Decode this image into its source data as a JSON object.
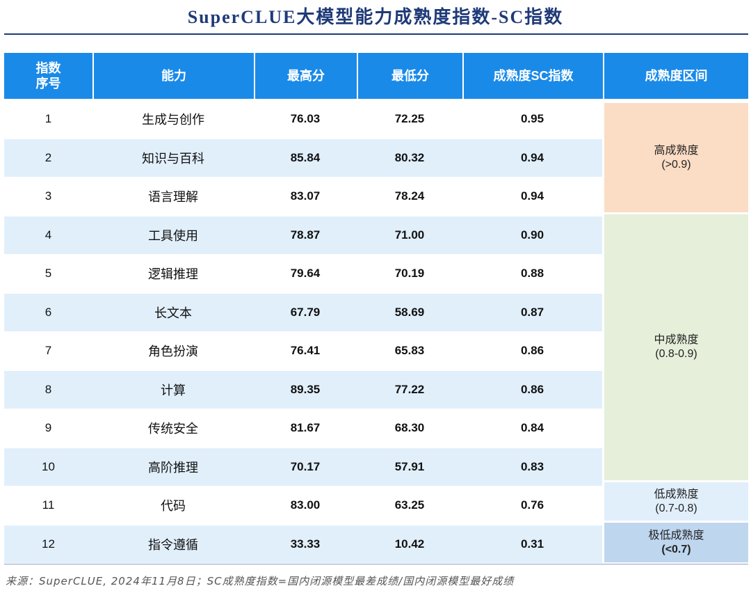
{
  "title": "SuperCLUE大模型能力成熟度指数-SC指数",
  "table": {
    "headers": {
      "index_line1": "指数",
      "index_line2": "序号",
      "ability": "能力",
      "max": "最高分",
      "min": "最低分",
      "sc": "成熟度SC指数",
      "range": "成熟度区间"
    },
    "rows": [
      {
        "index": "1",
        "ability": "生成与创作",
        "max": "76.03",
        "min": "72.25",
        "sc": "0.95"
      },
      {
        "index": "2",
        "ability": "知识与百科",
        "max": "85.84",
        "min": "80.32",
        "sc": "0.94"
      },
      {
        "index": "3",
        "ability": "语言理解",
        "max": "83.07",
        "min": "78.24",
        "sc": "0.94"
      },
      {
        "index": "4",
        "ability": "工具使用",
        "max": "78.87",
        "min": "71.00",
        "sc": "0.90"
      },
      {
        "index": "5",
        "ability": "逻辑推理",
        "max": "79.64",
        "min": "70.19",
        "sc": "0.88"
      },
      {
        "index": "6",
        "ability": "长文本",
        "max": "67.79",
        "min": "58.69",
        "sc": "0.87"
      },
      {
        "index": "7",
        "ability": "角色扮演",
        "max": "76.41",
        "min": "65.83",
        "sc": "0.86"
      },
      {
        "index": "8",
        "ability": "计算",
        "max": "89.35",
        "min": "77.22",
        "sc": "0.86"
      },
      {
        "index": "9",
        "ability": "传统安全",
        "max": "81.67",
        "min": "68.30",
        "sc": "0.84"
      },
      {
        "index": "10",
        "ability": "高阶推理",
        "max": "70.17",
        "min": "57.91",
        "sc": "0.83"
      },
      {
        "index": "11",
        "ability": "代码",
        "max": "83.00",
        "min": "63.25",
        "sc": "0.76"
      },
      {
        "index": "12",
        "ability": "指令遵循",
        "max": "33.33",
        "min": "10.42",
        "sc": "0.31"
      }
    ],
    "maturity": [
      {
        "label": "高成熟度",
        "range": "(>0.9)",
        "color": "#fbdcc4"
      },
      {
        "label": "中成熟度",
        "range": "(0.8-0.9)",
        "color": "#e6efda"
      },
      {
        "label": "低成熟度",
        "range": "(0.7-0.8)",
        "color": "#e1effb"
      },
      {
        "label": "极低成熟度",
        "range": "(<0.7)",
        "color": "#bed6ee"
      }
    ]
  },
  "source": "来源：SuperCLUE, 2024年11月8日；SC成熟度指数=国内闭源模型最差成绩/国内闭源模型最好成绩",
  "colors": {
    "header_bg": "#1a8ae8",
    "title": "#1f3a78",
    "row_shade": "#e1effb"
  }
}
